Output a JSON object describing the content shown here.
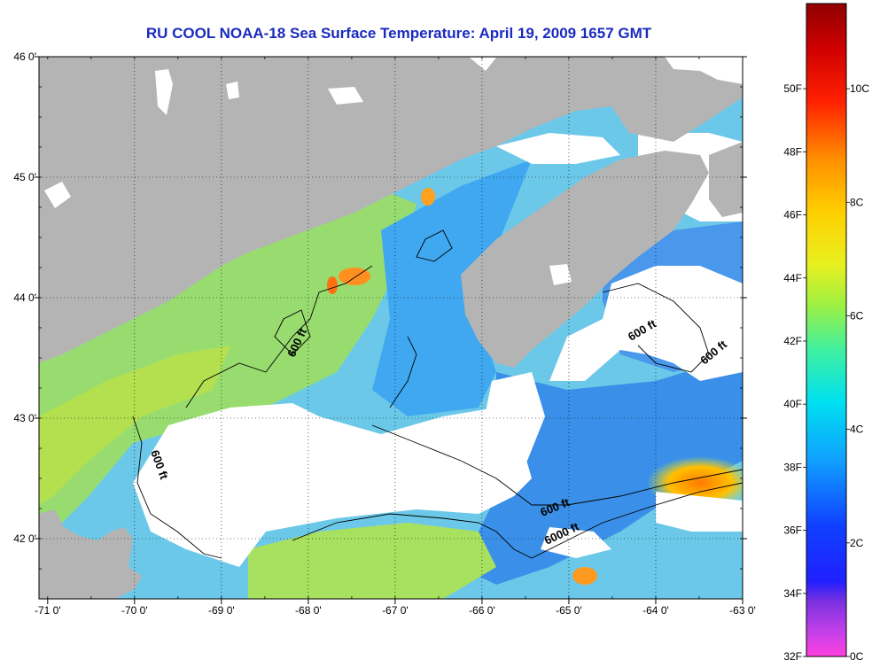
{
  "title": "RU COOL  NOAA-18  Sea Surface Temperature:  April 19, 2009 1657 GMT",
  "axes": {
    "lon_ticks": [
      "-71 0'",
      "-70 0'",
      "-69 0'",
      "-68 0'",
      "-67 0'",
      "-66 0'",
      "-65 0'",
      "-64 0'",
      "-63 0'"
    ],
    "lat_ticks": [
      "46 0'",
      "45 0'",
      "44 0'",
      "43 0'",
      "42 0'"
    ],
    "lon_range": [
      -71.1,
      -63.0
    ],
    "lat_range": [
      41.5,
      46.0
    ]
  },
  "contours": {
    "labels": [
      "600 ft",
      "600 ft",
      "600 ft",
      "600 ft",
      "600 ft",
      "6000 ft"
    ]
  },
  "colorbar": {
    "fahrenheit_labels": [
      "50F",
      "48F",
      "46F",
      "44F",
      "42F",
      "40F",
      "38F",
      "36F",
      "34F",
      "32F"
    ],
    "celsius_labels": [
      "10C",
      "8C",
      "6C",
      "4C",
      "2C",
      "0C"
    ],
    "range_c": [
      0,
      11.5
    ],
    "colors": {
      "land": "#b4b4b4",
      "cloud": "#ffffff",
      "cold": "#2060e8",
      "cool": "#30b4f0",
      "mid": "#60d8d0",
      "warm": "#a8e060",
      "hot": "#ff8800"
    }
  }
}
